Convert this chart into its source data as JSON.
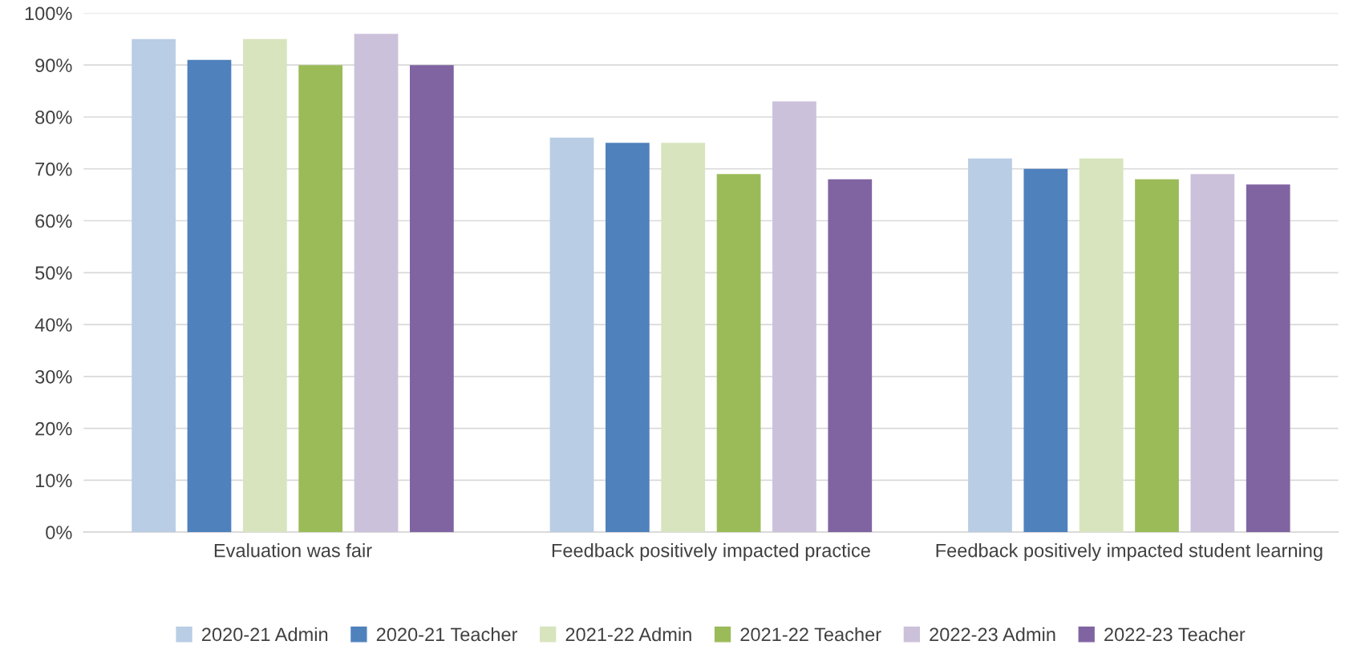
{
  "chart_data": {
    "type": "bar",
    "categories": [
      "Evaluation was fair",
      "Feedback positively impacted practice",
      "Feedback positively impacted student learning"
    ],
    "series": [
      {
        "name": "2020-21 Admin",
        "color": "#b9cde5",
        "values": [
          95,
          76,
          72
        ]
      },
      {
        "name": "2020-21 Teacher",
        "color": "#4f81bd",
        "values": [
          91,
          75,
          70
        ]
      },
      {
        "name": "2021-22 Admin",
        "color": "#d7e4bd",
        "values": [
          95,
          75,
          72
        ]
      },
      {
        "name": "2021-22 Teacher",
        "color": "#9bbb59",
        "values": [
          90,
          69,
          68
        ]
      },
      {
        "name": "2022-23 Admin",
        "color": "#ccc1da",
        "values": [
          96,
          83,
          69
        ]
      },
      {
        "name": "2022-23 Teacher",
        "color": "#8064a2",
        "values": [
          90,
          68,
          67
        ]
      }
    ],
    "ylim": [
      0,
      100
    ],
    "yticks": [
      {
        "value": 0,
        "label": "0%"
      },
      {
        "value": 10,
        "label": "10%"
      },
      {
        "value": 20,
        "label": "20%"
      },
      {
        "value": 30,
        "label": "30%"
      },
      {
        "value": 40,
        "label": "40%"
      },
      {
        "value": 50,
        "label": "50%"
      },
      {
        "value": 60,
        "label": "60%"
      },
      {
        "value": 70,
        "label": "70%"
      },
      {
        "value": 80,
        "label": "80%"
      },
      {
        "value": 90,
        "label": "90%"
      },
      {
        "value": 100,
        "label": "100%"
      }
    ],
    "grid": "y",
    "legend": "bottom"
  }
}
